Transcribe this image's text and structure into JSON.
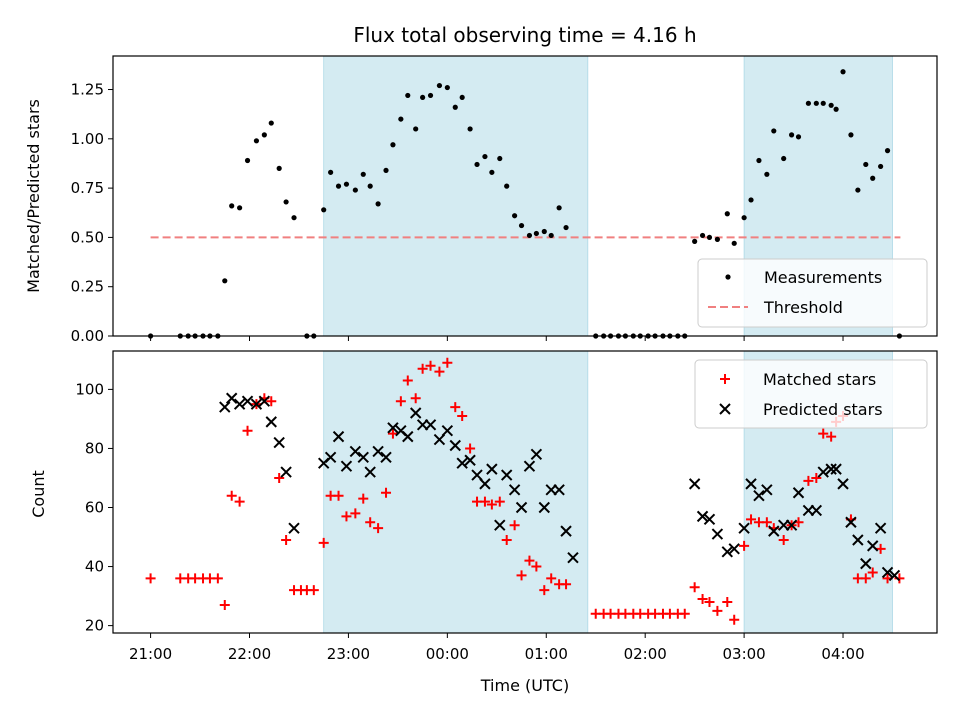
{
  "chart_data": [
    {
      "type": "scatter",
      "title": "Flux total observing time = 4.16 h",
      "ylabel": "Matched/Predicted stars",
      "ylim": [
        0,
        1.42
      ],
      "xlim": [
        -0.38,
        7.95
      ],
      "yticks": [
        0.0,
        0.25,
        0.5,
        0.75,
        1.0,
        1.25
      ],
      "ytick_labels": [
        "0.00",
        "0.25",
        "0.50",
        "0.75",
        "1.00",
        "1.25"
      ],
      "shaded_ranges": [
        [
          1.75,
          4.42
        ],
        [
          6.0,
          7.5
        ]
      ],
      "shade_color": "#add8e6",
      "threshold": {
        "name": "Threshold",
        "value": 0.5,
        "x_range": [
          0.0,
          7.58
        ],
        "color": "#f08080"
      },
      "series": [
        {
          "name": "Measurements",
          "marker": "dot",
          "color": "#000000",
          "points": [
            [
              0.0,
              0.0
            ],
            [
              0.3,
              0.0
            ],
            [
              0.38,
              0.0
            ],
            [
              0.45,
              0.0
            ],
            [
              0.53,
              0.0
            ],
            [
              0.6,
              0.0
            ],
            [
              0.68,
              0.0
            ],
            [
              0.75,
              0.28
            ],
            [
              0.82,
              0.66
            ],
            [
              0.9,
              0.65
            ],
            [
              0.98,
              0.89
            ],
            [
              1.07,
              0.99
            ],
            [
              1.15,
              1.02
            ],
            [
              1.22,
              1.08
            ],
            [
              1.3,
              0.85
            ],
            [
              1.37,
              0.68
            ],
            [
              1.45,
              0.6
            ],
            [
              1.58,
              0.0
            ],
            [
              1.65,
              0.0
            ],
            [
              1.75,
              0.64
            ],
            [
              1.82,
              0.83
            ],
            [
              1.9,
              0.76
            ],
            [
              1.98,
              0.77
            ],
            [
              2.07,
              0.74
            ],
            [
              2.15,
              0.82
            ],
            [
              2.22,
              0.76
            ],
            [
              2.3,
              0.67
            ],
            [
              2.38,
              0.84
            ],
            [
              2.45,
              0.97
            ],
            [
              2.53,
              1.1
            ],
            [
              2.6,
              1.22
            ],
            [
              2.68,
              1.05
            ],
            [
              2.75,
              1.21
            ],
            [
              2.83,
              1.22
            ],
            [
              2.92,
              1.27
            ],
            [
              3.0,
              1.26
            ],
            [
              3.08,
              1.16
            ],
            [
              3.15,
              1.21
            ],
            [
              3.23,
              1.05
            ],
            [
              3.3,
              0.87
            ],
            [
              3.38,
              0.91
            ],
            [
              3.45,
              0.83
            ],
            [
              3.53,
              0.9
            ],
            [
              3.6,
              0.76
            ],
            [
              3.68,
              0.61
            ],
            [
              3.75,
              0.56
            ],
            [
              3.83,
              0.51
            ],
            [
              3.9,
              0.52
            ],
            [
              3.98,
              0.53
            ],
            [
              4.05,
              0.51
            ],
            [
              4.13,
              0.65
            ],
            [
              4.2,
              0.55
            ],
            [
              4.5,
              0.0
            ],
            [
              4.58,
              0.0
            ],
            [
              4.65,
              0.0
            ],
            [
              4.73,
              0.0
            ],
            [
              4.8,
              0.0
            ],
            [
              4.88,
              0.0
            ],
            [
              4.95,
              0.0
            ],
            [
              5.03,
              0.0
            ],
            [
              5.1,
              0.0
            ],
            [
              5.18,
              0.0
            ],
            [
              5.25,
              0.0
            ],
            [
              5.33,
              0.0
            ],
            [
              5.4,
              0.0
            ],
            [
              5.5,
              0.48
            ],
            [
              5.58,
              0.51
            ],
            [
              5.65,
              0.5
            ],
            [
              5.73,
              0.49
            ],
            [
              5.83,
              0.62
            ],
            [
              5.9,
              0.47
            ],
            [
              6.0,
              0.6
            ],
            [
              6.07,
              0.69
            ],
            [
              6.15,
              0.89
            ],
            [
              6.23,
              0.82
            ],
            [
              6.3,
              1.04
            ],
            [
              6.4,
              0.9
            ],
            [
              6.48,
              1.02
            ],
            [
              6.55,
              1.01
            ],
            [
              6.65,
              1.18
            ],
            [
              6.73,
              1.18
            ],
            [
              6.8,
              1.18
            ],
            [
              6.88,
              1.17
            ],
            [
              6.93,
              1.15
            ],
            [
              7.0,
              1.34
            ],
            [
              7.08,
              1.02
            ],
            [
              7.15,
              0.74
            ],
            [
              7.23,
              0.87
            ],
            [
              7.3,
              0.8
            ],
            [
              7.38,
              0.86
            ],
            [
              7.45,
              0.94
            ],
            [
              7.57,
              0.0
            ]
          ]
        }
      ],
      "legend": {
        "placement": "lower right",
        "entries": [
          "Measurements",
          "Threshold"
        ]
      }
    },
    {
      "type": "scatter",
      "xlabel": "Time (UTC)",
      "ylabel": "Count",
      "ylim": [
        17.5,
        113
      ],
      "xlim": [
        -0.38,
        7.95
      ],
      "xticks": [
        0,
        1,
        2,
        3,
        4,
        5,
        6,
        7
      ],
      "xtick_labels": [
        "21:00",
        "22:00",
        "23:00",
        "00:00",
        "01:00",
        "02:00",
        "03:00",
        "04:00"
      ],
      "yticks": [
        20,
        40,
        60,
        80,
        100
      ],
      "ytick_labels": [
        "20",
        "40",
        "60",
        "80",
        "100"
      ],
      "shaded_ranges": [
        [
          1.75,
          4.42
        ],
        [
          6.0,
          7.5
        ]
      ],
      "shade_color": "#add8e6",
      "series": [
        {
          "name": "Matched stars",
          "marker": "plus",
          "color": "#ff0000",
          "points": [
            [
              0.0,
              36
            ],
            [
              0.3,
              36
            ],
            [
              0.38,
              36
            ],
            [
              0.45,
              36
            ],
            [
              0.53,
              36
            ],
            [
              0.6,
              36
            ],
            [
              0.68,
              36
            ],
            [
              0.75,
              27
            ],
            [
              0.82,
              64
            ],
            [
              0.9,
              62
            ],
            [
              0.98,
              86
            ],
            [
              1.07,
              95
            ],
            [
              1.15,
              97
            ],
            [
              1.22,
              96
            ],
            [
              1.3,
              70
            ],
            [
              1.37,
              49
            ],
            [
              1.45,
              32
            ],
            [
              1.52,
              32
            ],
            [
              1.58,
              32
            ],
            [
              1.65,
              32
            ],
            [
              1.75,
              48
            ],
            [
              1.82,
              64
            ],
            [
              1.9,
              64
            ],
            [
              1.98,
              57
            ],
            [
              2.07,
              58
            ],
            [
              2.15,
              63
            ],
            [
              2.22,
              55
            ],
            [
              2.3,
              53
            ],
            [
              2.38,
              65
            ],
            [
              2.45,
              85
            ],
            [
              2.53,
              96
            ],
            [
              2.6,
              103
            ],
            [
              2.68,
              97
            ],
            [
              2.75,
              107
            ],
            [
              2.83,
              108
            ],
            [
              2.92,
              106
            ],
            [
              3.0,
              109
            ],
            [
              3.08,
              94
            ],
            [
              3.15,
              91
            ],
            [
              3.23,
              80
            ],
            [
              3.3,
              62
            ],
            [
              3.38,
              62
            ],
            [
              3.45,
              61
            ],
            [
              3.53,
              62
            ],
            [
              3.6,
              49
            ],
            [
              3.68,
              54
            ],
            [
              3.75,
              37
            ],
            [
              3.83,
              42
            ],
            [
              3.9,
              40
            ],
            [
              3.98,
              32
            ],
            [
              4.05,
              36
            ],
            [
              4.13,
              34
            ],
            [
              4.2,
              34
            ],
            [
              4.5,
              24
            ],
            [
              4.58,
              24
            ],
            [
              4.65,
              24
            ],
            [
              4.73,
              24
            ],
            [
              4.8,
              24
            ],
            [
              4.88,
              24
            ],
            [
              4.95,
              24
            ],
            [
              5.03,
              24
            ],
            [
              5.1,
              24
            ],
            [
              5.18,
              24
            ],
            [
              5.25,
              24
            ],
            [
              5.33,
              24
            ],
            [
              5.4,
              24
            ],
            [
              5.5,
              33
            ],
            [
              5.58,
              29
            ],
            [
              5.65,
              28
            ],
            [
              5.73,
              25
            ],
            [
              5.83,
              28
            ],
            [
              5.9,
              22
            ],
            [
              6.0,
              47
            ],
            [
              6.07,
              56
            ],
            [
              6.15,
              55
            ],
            [
              6.23,
              55
            ],
            [
              6.3,
              53
            ],
            [
              6.4,
              49
            ],
            [
              6.48,
              54
            ],
            [
              6.55,
              55
            ],
            [
              6.65,
              69
            ],
            [
              6.73,
              70
            ],
            [
              6.8,
              85
            ],
            [
              6.88,
              84
            ],
            [
              6.93,
              89
            ],
            [
              7.0,
              91
            ],
            [
              7.08,
              56
            ],
            [
              7.15,
              36
            ],
            [
              7.23,
              36
            ],
            [
              7.3,
              38
            ],
            [
              7.38,
              46
            ],
            [
              7.45,
              36
            ],
            [
              7.57,
              36
            ]
          ]
        },
        {
          "name": "Predicted stars",
          "marker": "x",
          "color": "#000000",
          "points": [
            [
              0.75,
              94
            ],
            [
              0.82,
              97
            ],
            [
              0.9,
              95
            ],
            [
              0.98,
              96
            ],
            [
              1.07,
              95
            ],
            [
              1.15,
              96
            ],
            [
              1.22,
              89
            ],
            [
              1.3,
              82
            ],
            [
              1.37,
              72
            ],
            [
              1.45,
              53
            ],
            [
              1.75,
              75
            ],
            [
              1.82,
              77
            ],
            [
              1.9,
              84
            ],
            [
              1.98,
              74
            ],
            [
              2.07,
              79
            ],
            [
              2.15,
              77
            ],
            [
              2.22,
              72
            ],
            [
              2.3,
              79
            ],
            [
              2.38,
              77
            ],
            [
              2.45,
              87
            ],
            [
              2.53,
              86
            ],
            [
              2.6,
              84
            ],
            [
              2.68,
              92
            ],
            [
              2.75,
              88
            ],
            [
              2.83,
              88
            ],
            [
              2.92,
              83
            ],
            [
              3.0,
              86
            ],
            [
              3.08,
              81
            ],
            [
              3.15,
              75
            ],
            [
              3.23,
              76
            ],
            [
              3.3,
              71
            ],
            [
              3.38,
              68
            ],
            [
              3.45,
              73
            ],
            [
              3.53,
              54
            ],
            [
              3.6,
              71
            ],
            [
              3.68,
              66
            ],
            [
              3.75,
              60
            ],
            [
              3.83,
              74
            ],
            [
              3.9,
              78
            ],
            [
              3.98,
              60
            ],
            [
              4.05,
              66
            ],
            [
              4.13,
              66
            ],
            [
              4.2,
              52
            ],
            [
              4.27,
              43
            ],
            [
              5.5,
              68
            ],
            [
              5.58,
              57
            ],
            [
              5.65,
              56
            ],
            [
              5.73,
              51
            ],
            [
              5.83,
              45
            ],
            [
              5.9,
              46
            ],
            [
              6.0,
              53
            ],
            [
              6.07,
              68
            ],
            [
              6.15,
              64
            ],
            [
              6.23,
              66
            ],
            [
              6.3,
              52
            ],
            [
              6.4,
              54
            ],
            [
              6.48,
              54
            ],
            [
              6.55,
              65
            ],
            [
              6.65,
              59
            ],
            [
              6.73,
              59
            ],
            [
              6.8,
              72
            ],
            [
              6.88,
              73
            ],
            [
              6.93,
              73
            ],
            [
              7.0,
              68
            ],
            [
              7.08,
              55
            ],
            [
              7.15,
              49
            ],
            [
              7.23,
              41
            ],
            [
              7.3,
              47
            ],
            [
              7.38,
              53
            ],
            [
              7.45,
              38
            ],
            [
              7.52,
              37
            ]
          ]
        }
      ],
      "legend": {
        "placement": "upper right",
        "entries": [
          "Matched stars",
          "Predicted stars"
        ]
      }
    }
  ]
}
